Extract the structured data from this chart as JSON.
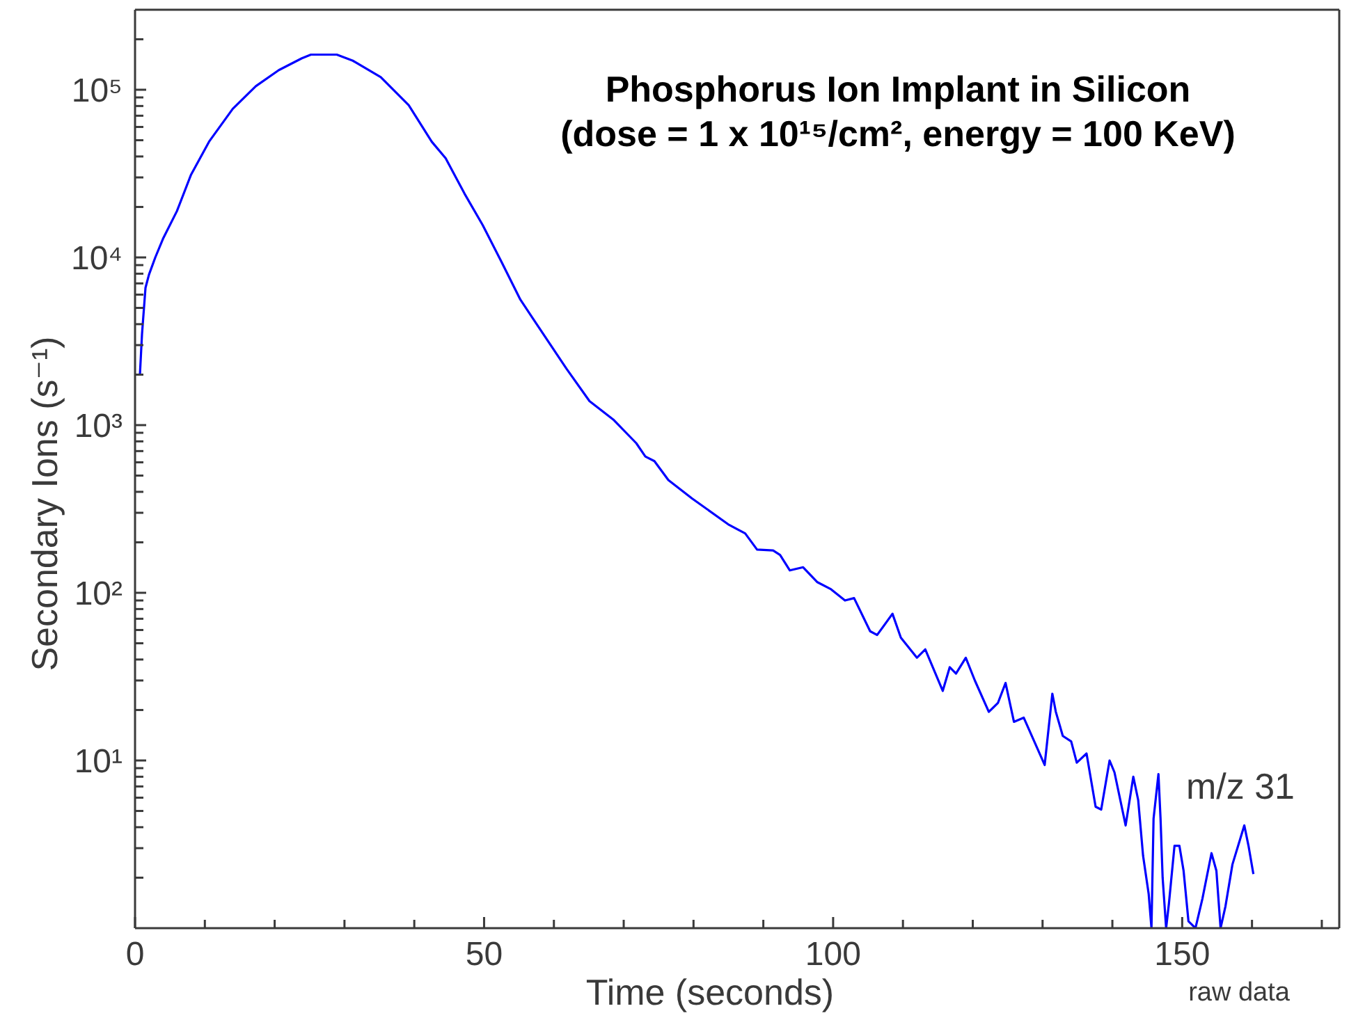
{
  "chart_data": {
    "type": "line",
    "title": "Phosphorus Ion Implant in Silicon",
    "subtitle": "(dose = 1 x 10¹⁵/cm², energy = 100 KeV)",
    "xlabel": "Time (seconds)",
    "ylabel": "Secondary Ions (s⁻¹)",
    "annotations": [
      "raw data"
    ],
    "log": true,
    "xlim": [
      0,
      172.5
    ],
    "xticks": [
      0,
      {
        "value": 10,
        "label": null
      },
      {
        "value": 20,
        "label": null
      },
      {
        "value": 30,
        "label": null
      },
      {
        "value": 40,
        "label": null
      },
      50,
      {
        "value": 60,
        "label": null
      },
      {
        "value": 70,
        "label": null
      },
      {
        "value": 80,
        "label": null
      },
      {
        "value": 90,
        "label": null
      },
      100,
      {
        "value": 110,
        "label": null
      },
      {
        "value": 120,
        "label": null
      },
      {
        "value": 130,
        "label": null
      },
      {
        "value": 140,
        "label": null
      },
      150,
      {
        "value": 160,
        "label": null
      },
      {
        "value": 170,
        "label": null
      }
    ],
    "ylim": [
      1,
      300000
    ],
    "yticks": [
      {
        "value": 2,
        "label": null
      },
      {
        "value": 3,
        "label": null
      },
      {
        "value": 4,
        "label": null
      },
      {
        "value": 5,
        "label": null
      },
      {
        "value": 6,
        "label": null
      },
      {
        "value": 7,
        "label": null
      },
      {
        "value": 8,
        "label": null
      },
      {
        "value": 9,
        "label": null
      },
      {
        "value": 10,
        "label": "10¹"
      },
      {
        "value": 20,
        "label": null
      },
      {
        "value": 30,
        "label": null
      },
      {
        "value": 40,
        "label": null
      },
      {
        "value": 50,
        "label": null
      },
      {
        "value": 60,
        "label": null
      },
      {
        "value": 70,
        "label": null
      },
      {
        "value": 80,
        "label": null
      },
      {
        "value": 90,
        "label": null
      },
      {
        "value": 100,
        "label": "10²"
      },
      {
        "value": 200,
        "label": null
      },
      {
        "value": 300,
        "label": null
      },
      {
        "value": 400,
        "label": null
      },
      {
        "value": 500,
        "label": null
      },
      {
        "value": 600,
        "label": null
      },
      {
        "value": 700,
        "label": null
      },
      {
        "value": 800,
        "label": null
      },
      {
        "value": 900,
        "label": null
      },
      {
        "value": 1000,
        "label": "10³"
      },
      {
        "value": 2000,
        "label": null
      },
      {
        "value": 3000,
        "label": null
      },
      {
        "value": 4000,
        "label": null
      },
      {
        "value": 5000,
        "label": null
      },
      {
        "value": 6000,
        "label": null
      },
      {
        "value": 7000,
        "label": null
      },
      {
        "value": 8000,
        "label": null
      },
      {
        "value": 9000,
        "label": null
      },
      {
        "value": 10000,
        "label": "10⁴"
      },
      {
        "value": 20000,
        "label": null
      },
      {
        "value": 30000,
        "label": null
      },
      {
        "value": 40000,
        "label": null
      },
      {
        "value": 50000,
        "label": null
      },
      {
        "value": 60000,
        "label": null
      },
      {
        "value": 70000,
        "label": null
      },
      {
        "value": 80000,
        "label": null
      },
      {
        "value": 90000,
        "label": null
      },
      {
        "value": 100000,
        "label": "10⁵"
      },
      {
        "value": 200000,
        "label": null
      }
    ],
    "x": [
      0.7,
      1.0,
      1.5,
      2.0,
      2.9,
      4.0,
      6.0,
      8.0,
      10.6,
      14.0,
      17.3,
      20.6,
      23.9,
      25.2,
      28.9,
      31.2,
      35.2,
      39.2,
      42.5,
      44.5,
      47.2,
      49.8,
      52.5,
      55.2,
      57.8,
      61.8,
      65.1,
      68.5,
      71.8,
      73.1,
      74.4,
      76.4,
      79.8,
      85.1,
      87.4,
      89.1,
      91.4,
      92.4,
      93.8,
      95.7,
      97.7,
      99.7,
      101.7,
      103.0,
      105.3,
      106.3,
      108.5,
      109.7,
      112.0,
      113.2,
      115.7,
      116.7,
      117.6,
      119.0,
      120.3,
      122.3,
      123.6,
      124.7,
      125.9,
      127.3,
      130.3,
      131.4,
      131.9,
      132.9,
      134.1,
      134.9,
      136.3,
      137.6,
      138.4,
      139.6,
      140.3,
      141.9,
      143.0,
      143.7,
      144.4,
      145.2,
      145.6,
      145.9,
      146.6,
      146.9,
      147.2,
      147.7,
      148.1,
      148.9,
      149.6,
      150.2,
      150.9,
      151.9,
      152.9,
      154.2,
      154.9,
      155.5,
      156.2,
      157.2,
      158.9,
      159.5,
      160.2
    ],
    "series": [
      {
        "name": "m/z 31",
        "color": "#0000ff",
        "values": [
          2000,
          3500,
          6600,
          7900,
          10000,
          12900,
          18900,
          31000,
          49000,
          77000,
          105000,
          131000,
          154000,
          162000,
          162000,
          149000,
          119000,
          81000,
          49000,
          39000,
          24000,
          15600,
          9400,
          5600,
          3850,
          2170,
          1390,
          1080,
          780,
          650,
          610,
          470,
          365,
          254,
          226,
          181,
          179,
          168,
          136,
          142,
          116,
          105,
          90,
          93,
          59,
          56,
          75,
          54,
          41,
          46,
          26,
          36,
          33,
          41,
          30,
          19.5,
          22,
          29,
          17,
          18,
          9.4,
          25,
          19.5,
          14,
          13,
          9.7,
          11,
          5.3,
          5.1,
          10,
          8.5,
          4.1,
          8.0,
          5.8,
          2.7,
          1.6,
          1,
          4.5,
          8.3,
          4.5,
          2.0,
          1,
          1.4,
          3.1,
          3.1,
          2.2,
          1.1,
          1,
          1.5,
          2.8,
          2.2,
          1,
          1.35,
          2.4,
          4.1,
          3.1,
          2.1
        ]
      }
    ]
  }
}
